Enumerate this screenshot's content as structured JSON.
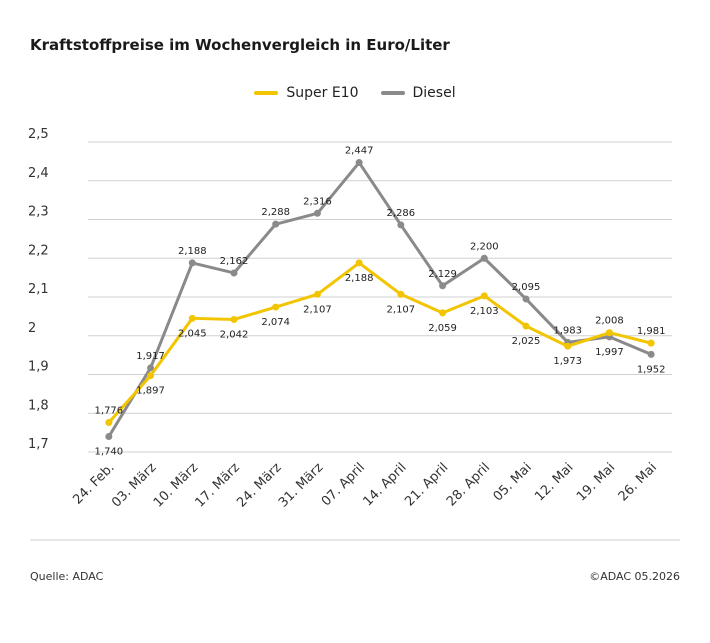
{
  "title": "Kraftstoffpreise im Wochenvergleich in Euro/Liter",
  "source": "Quelle: ADAC",
  "copyright": "©ADAC 05.2026",
  "chart_data": {
    "type": "line",
    "title": "Kraftstoffpreise im Wochenvergleich in Euro/Liter",
    "categories": [
      "24. Feb.",
      "03. März",
      "10. März",
      "17. März",
      "24. März",
      "31. März",
      "07. April",
      "14. April",
      "21. April",
      "28. April",
      "05. Mai",
      "12. Mai",
      "19. Mai",
      "26. Mai"
    ],
    "ylim": [
      1.7,
      2.5
    ],
    "yticks": [
      1.7,
      1.8,
      1.9,
      2.0,
      2.1,
      2.2,
      2.3,
      2.4,
      2.5
    ],
    "ytick_labels": [
      "1,7",
      "1,8",
      "1,9",
      "2",
      "2,1",
      "2,2",
      "2,3",
      "2,4",
      "2,5"
    ],
    "grid": true,
    "legend_position": "top-center",
    "series": [
      {
        "name": "Super E10",
        "color": "#f2c500",
        "values": [
          1.776,
          1.897,
          2.045,
          2.042,
          2.074,
          2.107,
          2.188,
          2.107,
          2.059,
          2.103,
          2.025,
          1.973,
          2.008,
          1.981
        ],
        "labels": [
          "1,776",
          "1,897",
          "2,045",
          "2,042",
          "2,074",
          "2,107",
          "2,188",
          "2,107",
          "2,059",
          "2,103",
          "2,025",
          "1,973",
          "2,008",
          "1,981"
        ]
      },
      {
        "name": "Diesel",
        "color": "#8a8a8a",
        "values": [
          1.74,
          1.917,
          2.188,
          2.162,
          2.288,
          2.316,
          2.447,
          2.286,
          2.129,
          2.2,
          2.095,
          1.983,
          1.997,
          1.952
        ],
        "labels": [
          "1,740",
          "1,917",
          "2,188",
          "2,162",
          "2,288",
          "2,316",
          "2,447",
          "2,286",
          "2,129",
          "2,200",
          "2,095",
          "1,983",
          "1,997",
          "1,952"
        ]
      }
    ]
  }
}
